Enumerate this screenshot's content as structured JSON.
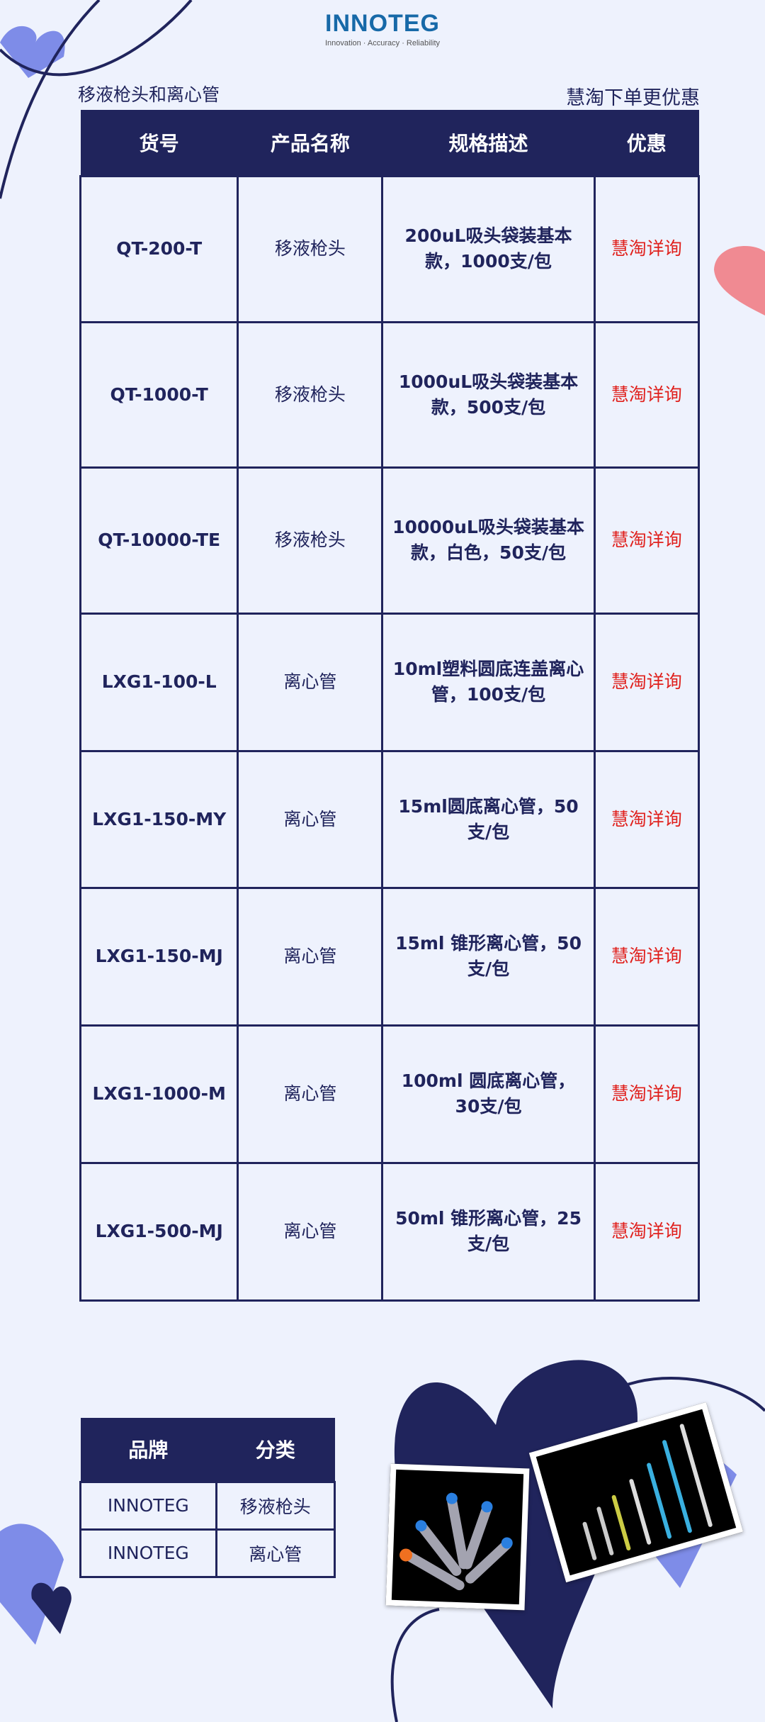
{
  "logo": {
    "name": "INNOTEG",
    "tagline": "Innovation · Accuracy · Reliability"
  },
  "section_title": "移液枪头和离心管",
  "promo_note": "慧淘下单更优惠",
  "main_table": {
    "headers": [
      "货号",
      "产品名称",
      "规格描述",
      "优惠"
    ],
    "rows": [
      {
        "code": "QT-200-T",
        "name": "移液枪头",
        "spec": "200uL吸头袋装基本款，1000支/包",
        "promo": "慧淘详询"
      },
      {
        "code": "QT-1000-T",
        "name": "移液枪头",
        "spec": "1000uL吸头袋装基本款，500支/包",
        "promo": "慧淘详询"
      },
      {
        "code": "QT-10000-TE",
        "name": "移液枪头",
        "spec": "10000uL吸头袋装基本款，白色，50支/包",
        "promo": "慧淘详询"
      },
      {
        "code": "LXG1-100-L",
        "name": "离心管",
        "spec": "10ml塑料圆底连盖离心管，100支/包",
        "promo": "慧淘详询"
      },
      {
        "code": "LXG1-150-MY",
        "name": "离心管",
        "spec": "15ml圆底离心管，50支/包",
        "promo": "慧淘详询"
      },
      {
        "code": "LXG1-150-MJ",
        "name": "离心管",
        "spec": "15ml 锥形离心管，50支/包",
        "promo": "慧淘详询"
      },
      {
        "code": "LXG1-1000-M",
        "name": "离心管",
        "spec": "100ml 圆底离心管，30支/包",
        "promo": "慧淘详询"
      },
      {
        "code": "LXG1-500-MJ",
        "name": "离心管",
        "spec": "50ml 锥形离心管，25支/包",
        "promo": "慧淘详询"
      }
    ]
  },
  "brand_table": {
    "headers": [
      "品牌",
      "分类"
    ],
    "rows": [
      {
        "brand": "INNOTEG",
        "category": "移液枪头"
      },
      {
        "brand": "INNOTEG",
        "category": "离心管"
      }
    ]
  },
  "colors": {
    "navy": "#20245c",
    "accent": "#e0201c",
    "background": "#eef2fd",
    "heart_light": "#7e8ce8",
    "heart_pink": "#f08a92"
  }
}
